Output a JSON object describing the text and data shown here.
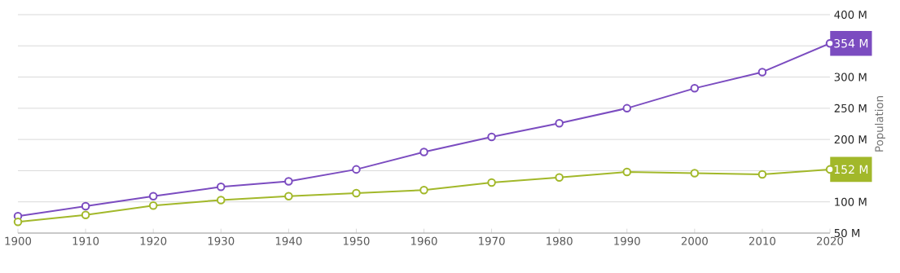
{
  "chart_data": {
    "type": "line",
    "ylabel": "Population",
    "x": [
      1900,
      1910,
      1920,
      1930,
      1940,
      1950,
      1960,
      1970,
      1980,
      1990,
      2000,
      2010,
      2020
    ],
    "series": [
      {
        "color": "#7b4cc0",
        "values": [
          77,
          93,
          109,
          124,
          133,
          152,
          180,
          204,
          226,
          250,
          282,
          308,
          354
        ],
        "value_labels": [
          null,
          null,
          null,
          null,
          null,
          null,
          null,
          null,
          null,
          null,
          null,
          null,
          "354 M"
        ]
      },
      {
        "color": "#a2b82a",
        "values": [
          68,
          79,
          94,
          103,
          109,
          114,
          119,
          131,
          139,
          148,
          146,
          144,
          152
        ],
        "value_labels": [
          null,
          null,
          null,
          null,
          null,
          null,
          null,
          null,
          null,
          null,
          null,
          null,
          "152 M"
        ]
      }
    ],
    "xlim": [
      1900,
      2020
    ],
    "xticks": [
      1900,
      1910,
      1920,
      1930,
      1940,
      1950,
      1960,
      1970,
      1980,
      1990,
      2000,
      2010,
      2020
    ],
    "ylim": [
      50,
      400
    ],
    "yticks": [
      {
        "value": 50,
        "label": "50 M"
      },
      {
        "value": 100,
        "label": "100 M"
      },
      {
        "value": 150,
        "label": null
      },
      {
        "value": 200,
        "label": "200 M"
      },
      {
        "value": 250,
        "label": "250 M"
      },
      {
        "value": 300,
        "label": "300 M"
      },
      {
        "value": 350,
        "label": null
      },
      {
        "value": 400,
        "label": "400 M"
      }
    ],
    "grid": "y",
    "marker": "circle",
    "line_style": "solid"
  }
}
